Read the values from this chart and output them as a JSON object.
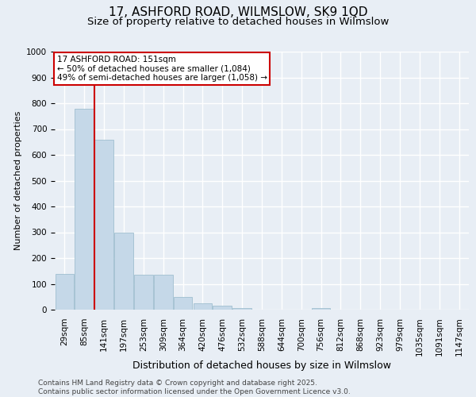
{
  "title1": "17, ASHFORD ROAD, WILMSLOW, SK9 1QD",
  "title2": "Size of property relative to detached houses in Wilmslow",
  "xlabel": "Distribution of detached houses by size in Wilmslow",
  "ylabel": "Number of detached properties",
  "bar_labels": [
    "29sqm",
    "85sqm",
    "141sqm",
    "197sqm",
    "253sqm",
    "309sqm",
    "364sqm",
    "420sqm",
    "476sqm",
    "532sqm",
    "588sqm",
    "644sqm",
    "700sqm",
    "756sqm",
    "812sqm",
    "868sqm",
    "923sqm",
    "979sqm",
    "1035sqm",
    "1091sqm",
    "1147sqm"
  ],
  "bar_heights": [
    140,
    780,
    660,
    300,
    135,
    135,
    50,
    25,
    15,
    5,
    0,
    0,
    0,
    5,
    0,
    0,
    0,
    0,
    0,
    0,
    0
  ],
  "bar_color": "#c5d8e8",
  "bar_edge_color": "#a0bfd0",
  "vline_x": 1.5,
  "vline_color": "#cc0000",
  "ylim": [
    0,
    1000
  ],
  "yticks": [
    0,
    100,
    200,
    300,
    400,
    500,
    600,
    700,
    800,
    900,
    1000
  ],
  "annotation_line1": "17 ASHFORD ROAD: 151sqm",
  "annotation_line2": "← 50% of detached houses are smaller (1,084)",
  "annotation_line3": "49% of semi-detached houses are larger (1,058) →",
  "annotation_box_color": "#ffffff",
  "annotation_box_edge": "#cc0000",
  "footer_line1": "Contains HM Land Registry data © Crown copyright and database right 2025.",
  "footer_line2": "Contains public sector information licensed under the Open Government Licence v3.0.",
  "background_color": "#e8eef5",
  "plot_background": "#e8eef5",
  "grid_color": "#ffffff",
  "title_fontsize": 11,
  "subtitle_fontsize": 9.5,
  "tick_fontsize": 7.5,
  "ylabel_fontsize": 8,
  "xlabel_fontsize": 9
}
